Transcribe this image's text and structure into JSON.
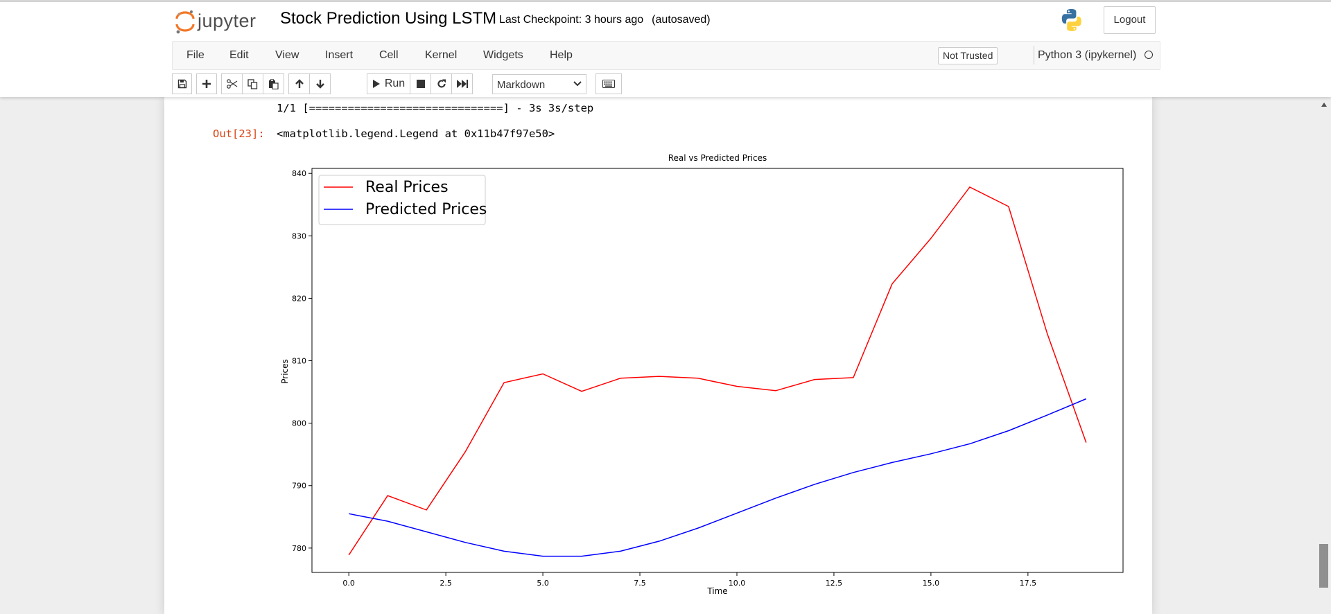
{
  "header": {
    "logo_text": "jupyter",
    "notebook_title": "Stock Prediction Using LSTM",
    "checkpoint": "Last Checkpoint: 3 hours ago",
    "autosave": "(autosaved)",
    "logout_label": "Logout"
  },
  "menu": {
    "items": [
      "File",
      "Edit",
      "View",
      "Insert",
      "Cell",
      "Kernel",
      "Widgets",
      "Help"
    ],
    "not_trusted": "Not Trusted",
    "kernel_name": "Python 3 (ipykernel)"
  },
  "toolbar": {
    "run_label": "Run",
    "cell_type": "Markdown",
    "icons": [
      "save-icon",
      "plus-icon",
      "cut-icon",
      "copy-icon",
      "paste-icon",
      "arrow-up-icon",
      "arrow-down-icon",
      "play-icon",
      "stop-icon",
      "restart-icon",
      "fast-forward-icon",
      "chevron-down-icon",
      "keyboard-icon"
    ]
  },
  "output": {
    "progress_line": "1/1 [==============================] - 3s 3s/step",
    "out_prompt": "Out[23]:",
    "out_text": "<matplotlib.legend.Legend at 0x11b47f97e50>"
  },
  "colors": {
    "real": "#ff0000",
    "predicted": "#0000ff",
    "out_prompt": "#d84315"
  },
  "chart_data": {
    "type": "line",
    "title": "Real vs Predicted Prices",
    "xlabel": "Time",
    "ylabel": "Prices",
    "xlim": [
      -0.95,
      19.95
    ],
    "ylim": [
      776.1,
      840.8
    ],
    "xticks": [
      0.0,
      2.5,
      5.0,
      7.5,
      10.0,
      12.5,
      15.0,
      17.5
    ],
    "xtick_labels": [
      "0.0",
      "2.5",
      "5.0",
      "7.5",
      "10.0",
      "12.5",
      "15.0",
      "17.5"
    ],
    "yticks": [
      780,
      790,
      800,
      810,
      820,
      830,
      840
    ],
    "ytick_labels": [
      "780",
      "790",
      "800",
      "810",
      "820",
      "830",
      "840"
    ],
    "grid": false,
    "legend_position": "top-left",
    "x": [
      0,
      1,
      2,
      3,
      4,
      5,
      6,
      7,
      8,
      9,
      10,
      11,
      12,
      13,
      14,
      15,
      16,
      17,
      18,
      19
    ],
    "series": [
      {
        "name": "Real Prices",
        "color": "#ff0000",
        "values": [
          778.9,
          788.4,
          786.1,
          795.4,
          806.5,
          807.9,
          805.1,
          807.2,
          807.5,
          807.2,
          805.9,
          805.2,
          807.0,
          807.3,
          822.3,
          829.6,
          837.8,
          834.7,
          814.3,
          796.9
        ]
      },
      {
        "name": "Predicted Prices",
        "color": "#0000ff",
        "values": [
          785.5,
          784.3,
          782.6,
          780.9,
          779.5,
          778.7,
          778.7,
          779.5,
          781.1,
          783.2,
          785.6,
          788.0,
          790.2,
          792.1,
          793.7,
          795.1,
          796.7,
          798.8,
          801.3,
          803.9
        ]
      }
    ]
  }
}
